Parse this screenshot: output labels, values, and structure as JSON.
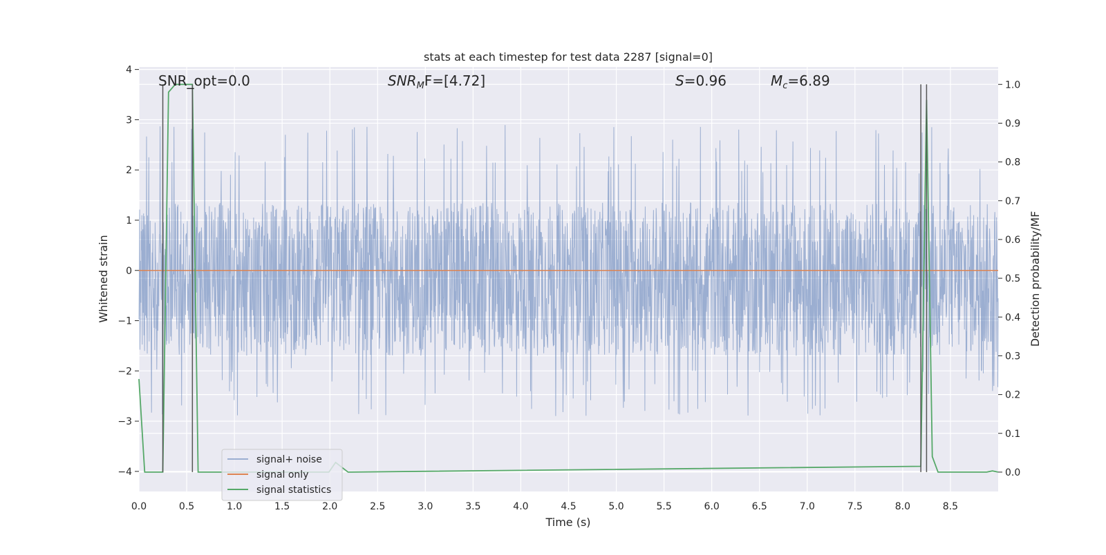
{
  "chart_data": {
    "type": "line",
    "title": "stats at each timestep for test data 2287 [signal=0]",
    "xlabel": "Time (s)",
    "ylabel": "Whitened strain",
    "y2label": "Detection probability/MF",
    "xlim": [
      0.0,
      9.0
    ],
    "ylim": [
      -4.4,
      4.05
    ],
    "y2lim": [
      -0.05,
      1.045
    ],
    "xticks": [
      0.0,
      0.5,
      1.0,
      1.5,
      2.0,
      2.5,
      3.0,
      3.5,
      4.0,
      4.5,
      5.0,
      5.5,
      6.0,
      6.5,
      7.0,
      7.5,
      8.0,
      8.5
    ],
    "xtick_labels": [
      "0.0",
      "0.5",
      "1.0",
      "1.5",
      "2.0",
      "2.5",
      "3.0",
      "3.5",
      "4.0",
      "4.5",
      "5.0",
      "5.5",
      "6.0",
      "6.5",
      "7.0",
      "7.5",
      "8.0",
      "8.5"
    ],
    "yticks": [
      -4,
      -3,
      -2,
      -1,
      0,
      1,
      2,
      3,
      4
    ],
    "ytick_labels": [
      "−4",
      "−3",
      "−2",
      "−1",
      "0",
      "1",
      "2",
      "3",
      "4"
    ],
    "y2ticks": [
      0.0,
      0.1,
      0.2,
      0.3,
      0.4,
      0.5,
      0.6,
      0.7,
      0.8,
      0.9,
      1.0
    ],
    "y2tick_labels": [
      "0.0",
      "0.1",
      "0.2",
      "0.3",
      "0.4",
      "0.5",
      "0.6",
      "0.7",
      "0.8",
      "0.9",
      "1.0"
    ],
    "grid": true,
    "legend_position": "lower-left",
    "series": [
      {
        "name": "signal+ noise",
        "color": "#4c72b0",
        "kind": "noise",
        "axis": "left",
        "x_range": [
          0.0,
          9.0
        ],
        "typical_range": [
          -1.7,
          1.35
        ],
        "peak_range": [
          -3.0,
          3.67
        ]
      },
      {
        "name": "signal only",
        "color": "#dd8452",
        "axis": "left",
        "x": [
          0.0,
          9.0
        ],
        "y": [
          0.0,
          0.0
        ]
      },
      {
        "name": "signal statistics",
        "color": "#55a868",
        "axis": "right",
        "x": [
          0.0,
          0.06,
          0.25,
          0.31,
          0.38,
          0.56,
          0.62,
          0.68,
          1.99,
          2.06,
          2.19,
          8.19,
          8.25,
          8.31,
          8.37,
          8.88,
          8.94,
          9.0
        ],
        "y": [
          0.24,
          0.0,
          0.0,
          0.98,
          1.0,
          1.0,
          0.0,
          0.0,
          0.0,
          0.025,
          0.0,
          0.015,
          0.96,
          0.04,
          0.0,
          0.0,
          0.003,
          0.0
        ]
      }
    ],
    "vertical_lines": [
      {
        "x": 0.25,
        "y2": [
          0.0,
          1.0
        ],
        "color": "#555555"
      },
      {
        "x": 0.56,
        "y2": [
          0.0,
          1.0
        ],
        "color": "#555555"
      },
      {
        "x": 8.19,
        "y2": [
          0.0,
          1.0
        ],
        "color": "#555555"
      },
      {
        "x": 8.25,
        "y2": [
          0.0,
          1.0
        ],
        "color": "#555555"
      }
    ],
    "annotations": [
      {
        "text": "SNR_opt=0.0",
        "x": 0.2,
        "y2": 1.01
      },
      {
        "text_main": "SNR",
        "text_sub": "M",
        "text_tail": "F=[4.72]",
        "x": 2.6,
        "y2": 1.01
      },
      {
        "text_main": "S",
        "text_tail": "=0.96",
        "x": 5.6,
        "y2": 1.01
      },
      {
        "text_main": "M",
        "text_sub": "c",
        "text_tail": "=6.89",
        "x": 6.6,
        "y2": 1.01
      }
    ]
  }
}
